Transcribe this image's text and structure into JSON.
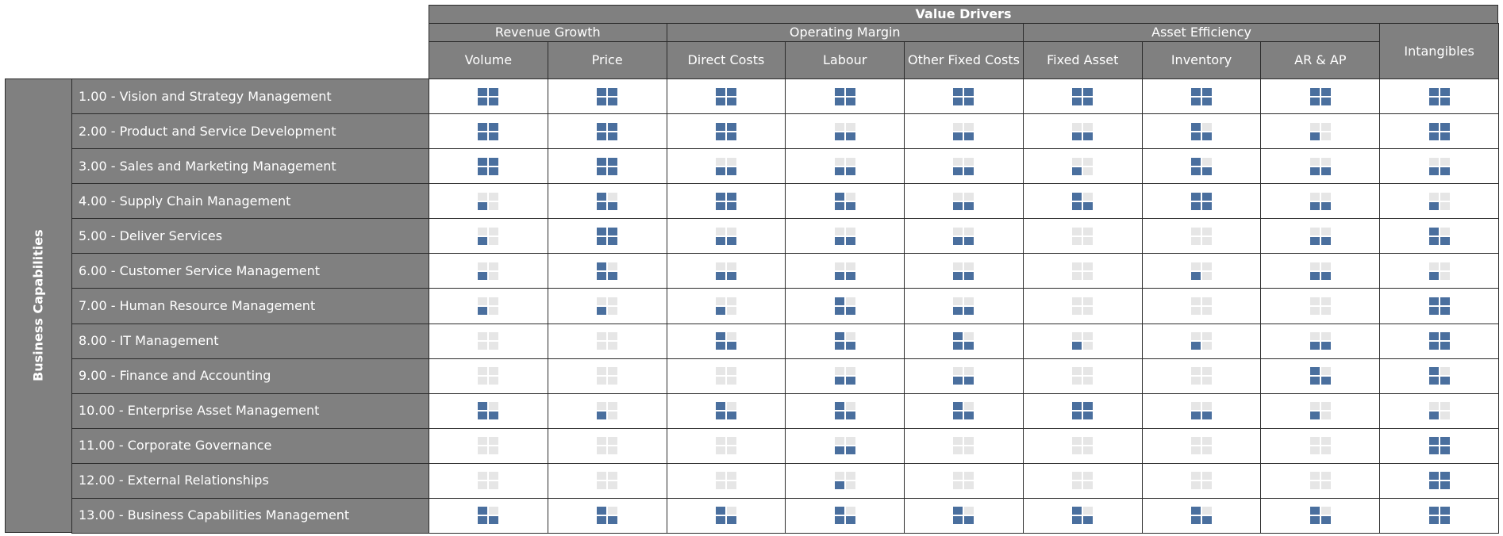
{
  "header": {
    "title": "Value Drivers",
    "groups": [
      {
        "label": "Revenue Growth",
        "columns": [
          "Volume",
          "Price"
        ]
      },
      {
        "label": "Operating Margin",
        "columns": [
          "Direct Costs",
          "Labour",
          "Other Fixed Costs"
        ]
      },
      {
        "label": "Asset Efficiency",
        "columns": [
          "Fixed Asset",
          "Inventory",
          "AR & AP"
        ]
      }
    ],
    "standalone": [
      "Intangibles"
    ]
  },
  "side_label": "Business Capabilities",
  "rows": [
    {
      "label": "1.00 - Vision and Strategy Management",
      "ratings": [
        4,
        4,
        4,
        4,
        4,
        4,
        4,
        4,
        4
      ]
    },
    {
      "label": "2.00 - Product and Service Development",
      "ratings": [
        4,
        4,
        4,
        2,
        2,
        2,
        3,
        1,
        4
      ]
    },
    {
      "label": "3.00 - Sales and Marketing Management",
      "ratings": [
        4,
        4,
        2,
        2,
        2,
        1,
        3,
        2,
        2
      ]
    },
    {
      "label": "4.00 - Supply Chain Management",
      "ratings": [
        1,
        3,
        4,
        3,
        2,
        3,
        4,
        2,
        1
      ]
    },
    {
      "label": "5.00 - Deliver Services",
      "ratings": [
        1,
        4,
        2,
        2,
        2,
        0,
        0,
        2,
        3
      ]
    },
    {
      "label": "6.00 - Customer Service Management",
      "ratings": [
        1,
        3,
        2,
        2,
        2,
        0,
        1,
        2,
        1
      ]
    },
    {
      "label": "7.00 - Human Resource Management",
      "ratings": [
        1,
        1,
        1,
        3,
        2,
        0,
        0,
        0,
        4
      ]
    },
    {
      "label": "8.00 - IT Management",
      "ratings": [
        0,
        0,
        3,
        3,
        3,
        1,
        1,
        2,
        4
      ]
    },
    {
      "label": "9.00 - Finance and Accounting",
      "ratings": [
        0,
        0,
        0,
        2,
        2,
        0,
        0,
        3,
        3
      ]
    },
    {
      "label": "10.00 - Enterprise Asset Management",
      "ratings": [
        3,
        1,
        3,
        3,
        3,
        4,
        2,
        1,
        1
      ]
    },
    {
      "label": "11.00 - Corporate Governance",
      "ratings": [
        0,
        0,
        0,
        2,
        0,
        0,
        0,
        0,
        4
      ]
    },
    {
      "label": "12.00 - External Relationships",
      "ratings": [
        0,
        0,
        0,
        1,
        0,
        0,
        0,
        0,
        4
      ]
    },
    {
      "label": "13.00 - Business Capabilities Management",
      "ratings": [
        3,
        3,
        3,
        3,
        3,
        3,
        3,
        3,
        4
      ]
    }
  ]
}
